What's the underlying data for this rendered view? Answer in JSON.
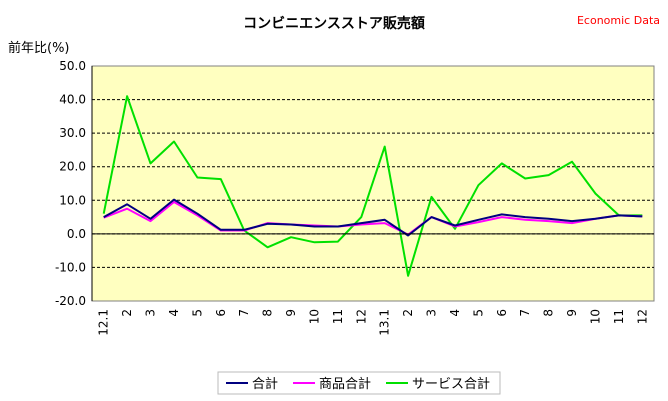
{
  "source_label": "Economic Data",
  "chart_data": {
    "type": "line",
    "title": "コンビニエンスストア販売額",
    "ylabel": "前年比(%)",
    "xlabel": "",
    "ylim": [
      -20,
      50
    ],
    "yticks": [
      "50.0",
      "40.0",
      "30.0",
      "20.0",
      "10.0",
      "0.0",
      "-10.0",
      "-20.0"
    ],
    "categories": [
      "12.1",
      "2",
      "3",
      "4",
      "5",
      "6",
      "7",
      "8",
      "9",
      "10",
      "11",
      "12",
      "13.1",
      "2",
      "3",
      "4",
      "5",
      "6",
      "7",
      "8",
      "9",
      "10",
      "11",
      "12"
    ],
    "grid": true,
    "legend_position": "bottom",
    "series": [
      {
        "name": "合計",
        "color": "#000080",
        "values": [
          5.0,
          8.8,
          4.5,
          10.2,
          6.0,
          1.2,
          1.2,
          3.0,
          2.8,
          2.2,
          2.2,
          3.2,
          4.2,
          -0.5,
          5.0,
          2.5,
          4.2,
          5.8,
          5.0,
          4.5,
          3.8,
          4.5,
          5.5,
          5.2
        ]
      },
      {
        "name": "商品合計",
        "color": "#ff00ff",
        "values": [
          4.8,
          7.5,
          3.8,
          9.5,
          5.5,
          1.0,
          1.0,
          3.2,
          2.8,
          2.5,
          2.2,
          2.8,
          3.2,
          -0.2,
          5.0,
          2.2,
          3.5,
          5.0,
          4.2,
          3.8,
          3.2,
          4.5,
          5.5,
          5.2
        ]
      },
      {
        "name": "サービス合計",
        "color": "#00e000",
        "values": [
          6.0,
          41.0,
          21.0,
          27.5,
          16.8,
          16.3,
          1.0,
          -4.0,
          -1.0,
          -2.5,
          -2.3,
          5.0,
          26.0,
          -12.5,
          11.0,
          1.5,
          14.5,
          21.0,
          16.5,
          17.5,
          21.5,
          12.0,
          5.5,
          5.5
        ]
      }
    ]
  }
}
